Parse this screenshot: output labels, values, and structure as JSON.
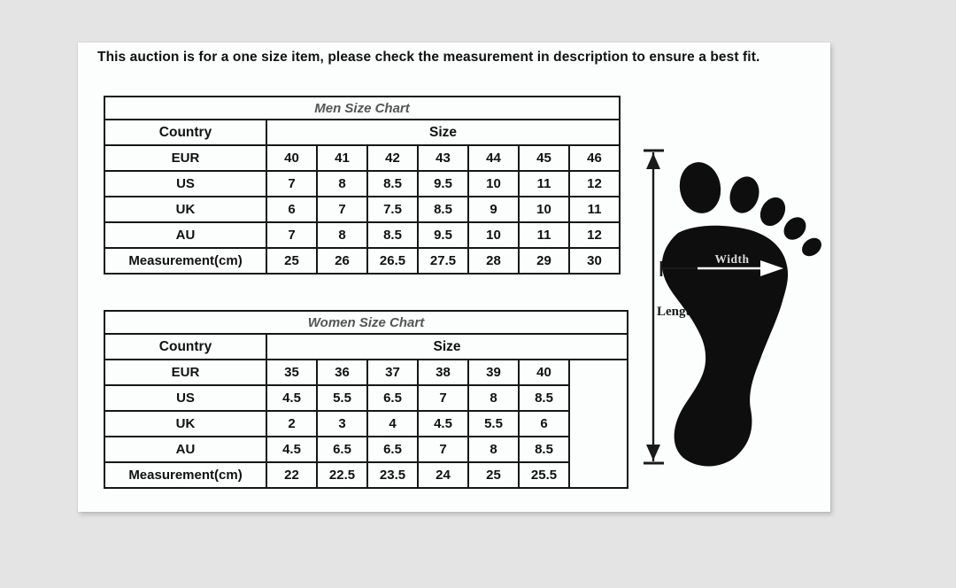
{
  "notice": "This auction is for a one size item, please check the measurement in description to ensure a best fit.",
  "men_chart": {
    "title": "Men Size Chart",
    "country_header": "Country",
    "size_header": "Size",
    "rows": [
      {
        "label": "EUR",
        "values": [
          "40",
          "41",
          "42",
          "43",
          "44",
          "45",
          "46"
        ]
      },
      {
        "label": "US",
        "values": [
          "7",
          "8",
          "8.5",
          "9.5",
          "10",
          "11",
          "12"
        ]
      },
      {
        "label": "UK",
        "values": [
          "6",
          "7",
          "7.5",
          "8.5",
          "9",
          "10",
          "11"
        ]
      },
      {
        "label": "AU",
        "values": [
          "7",
          "8",
          "8.5",
          "9.5",
          "10",
          "11",
          "12"
        ]
      },
      {
        "label": "Measurement(cm)",
        "values": [
          "25",
          "26",
          "26.5",
          "27.5",
          "28",
          "29",
          "30"
        ]
      }
    ]
  },
  "women_chart": {
    "title": "Women Size Chart",
    "country_header": "Country",
    "size_header": "Size",
    "rows": [
      {
        "label": "EUR",
        "values": [
          "35",
          "36",
          "37",
          "38",
          "39",
          "40"
        ]
      },
      {
        "label": "US",
        "values": [
          "4.5",
          "5.5",
          "6.5",
          "7",
          "8",
          "8.5"
        ]
      },
      {
        "label": "UK",
        "values": [
          "2",
          "3",
          "4",
          "4.5",
          "5.5",
          "6"
        ]
      },
      {
        "label": "AU",
        "values": [
          "4.5",
          "6.5",
          "6.5",
          "7",
          "8",
          "8.5"
        ]
      },
      {
        "label": "Measurement(cm)",
        "values": [
          "22",
          "22.5",
          "23.5",
          "24",
          "25",
          "25.5"
        ]
      }
    ]
  },
  "foot_diagram": {
    "length_label": "Length",
    "width_label": "Width"
  },
  "colors": {
    "page_bg": "#e4e4e4",
    "panel_bg": "#fcfdfd",
    "table_border": "#161616",
    "cell_text": "#111111",
    "title_text": "#555555",
    "footprint": "#0e0e0e",
    "width_label_text": "#d9d9d9"
  }
}
